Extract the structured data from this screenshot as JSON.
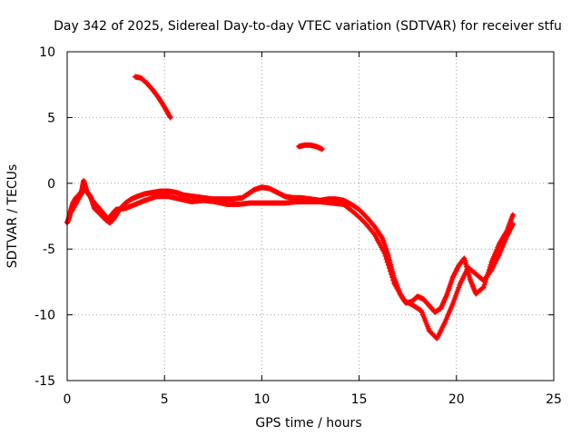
{
  "chart_data": {
    "type": "scatter",
    "title": "Day 342 of 2025, Sidereal Day-to-day VTEC variation (SDTVAR) for receiver stfu",
    "xlabel": "GPS time / hours",
    "ylabel": "SDTVAR / TECUs",
    "xlim": [
      0,
      25
    ],
    "ylim": [
      -15,
      10
    ],
    "xticks": [
      0,
      5,
      10,
      15,
      20,
      25
    ],
    "yticks": [
      -15,
      -10,
      -5,
      0,
      5,
      10
    ],
    "grid": true,
    "legend": "none",
    "series": [
      {
        "name": "main trace",
        "color": "#ff0000",
        "marker": "plus",
        "x": [
          0.0,
          0.1,
          0.2,
          0.3,
          0.45,
          0.6,
          0.75,
          0.85,
          1.0,
          1.2,
          1.4,
          1.6,
          1.8,
          2.0,
          2.2,
          2.4,
          2.6,
          2.8,
          3.0,
          3.3,
          3.6,
          4.0,
          4.4,
          4.8,
          5.2,
          5.6,
          6.0,
          6.5,
          7.0,
          7.5,
          8.0,
          8.5,
          9.0,
          9.3,
          9.6,
          10.0,
          10.4,
          10.8,
          11.2,
          11.6,
          12.0,
          12.5,
          13.0,
          13.4,
          13.8,
          14.2,
          14.6,
          15.0,
          15.4,
          15.8,
          16.2,
          16.5,
          16.8,
          17.1,
          17.4,
          17.7,
          18.0,
          18.3,
          18.6,
          18.9,
          19.2,
          19.5,
          19.8,
          20.1,
          20.4,
          20.7,
          21.0,
          21.4,
          21.8,
          22.2,
          22.6,
          22.9
        ],
        "y": [
          -3.0,
          -2.6,
          -2.0,
          -1.5,
          -1.1,
          -0.9,
          -0.6,
          0.2,
          -0.6,
          -1.0,
          -1.9,
          -2.2,
          -2.5,
          -2.8,
          -3.0,
          -2.7,
          -2.2,
          -1.8,
          -1.5,
          -1.2,
          -1.0,
          -0.8,
          -0.7,
          -0.6,
          -0.6,
          -0.7,
          -0.9,
          -1.0,
          -1.1,
          -1.2,
          -1.2,
          -1.2,
          -1.1,
          -0.8,
          -0.5,
          -0.3,
          -0.4,
          -0.7,
          -1.0,
          -1.1,
          -1.1,
          -1.2,
          -1.3,
          -1.2,
          -1.2,
          -1.3,
          -1.6,
          -2.0,
          -2.6,
          -3.3,
          -4.2,
          -5.5,
          -7.2,
          -8.4,
          -9.1,
          -9.0,
          -8.6,
          -8.8,
          -9.3,
          -9.8,
          -9.5,
          -8.5,
          -7.2,
          -6.3,
          -5.7,
          -7.3,
          -8.4,
          -7.9,
          -6.0,
          -4.6,
          -3.6,
          -2.4
        ]
      },
      {
        "name": "secondary trace",
        "color": "#ff0000",
        "marker": "plus",
        "x": [
          0.2,
          0.5,
          0.9,
          1.3,
          1.7,
          2.1,
          2.5,
          3.0,
          3.5,
          4.0,
          4.6,
          5.2,
          5.8,
          6.4,
          7.0,
          7.6,
          8.2,
          8.8,
          9.4,
          10.0,
          10.6,
          11.2,
          11.8,
          12.4,
          13.0,
          13.6,
          14.2,
          14.8,
          15.3,
          15.8,
          16.3,
          16.8,
          17.3,
          17.8,
          18.2,
          18.6,
          19.0,
          19.4,
          19.8,
          20.2,
          20.6,
          21.0,
          21.4,
          21.8,
          22.2,
          22.6,
          22.9
        ],
        "y": [
          -2.2,
          -1.4,
          -0.4,
          -1.3,
          -2.0,
          -2.7,
          -2.0,
          -1.9,
          -1.6,
          -1.3,
          -1.0,
          -1.0,
          -1.2,
          -1.4,
          -1.3,
          -1.4,
          -1.6,
          -1.6,
          -1.5,
          -1.5,
          -1.5,
          -1.5,
          -1.4,
          -1.4,
          -1.4,
          -1.5,
          -1.6,
          -2.3,
          -3.0,
          -3.9,
          -5.3,
          -7.6,
          -8.9,
          -9.3,
          -9.7,
          -11.2,
          -11.8,
          -10.6,
          -9.2,
          -7.6,
          -6.4,
          -6.9,
          -7.4,
          -6.6,
          -5.4,
          -4.0,
          -3.1
        ]
      },
      {
        "name": "arc near hour 4",
        "color": "#ff0000",
        "marker": "plus",
        "x": [
          3.5,
          3.8,
          4.1,
          4.4,
          4.7,
          5.0,
          5.3
        ],
        "y": [
          8.1,
          8.0,
          7.6,
          7.1,
          6.5,
          5.8,
          5.0
        ]
      },
      {
        "name": "short arc near hour 12",
        "color": "#ff0000",
        "marker": "plus",
        "x": [
          11.9,
          12.2,
          12.5,
          12.8,
          13.1
        ],
        "y": [
          2.8,
          2.9,
          2.9,
          2.8,
          2.6
        ]
      }
    ]
  }
}
